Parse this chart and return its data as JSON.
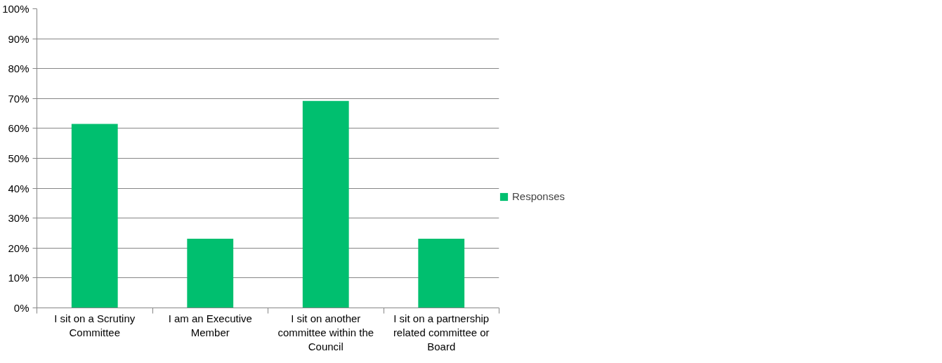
{
  "chart_data": {
    "type": "bar",
    "categories": [
      "I sit on a Scrutiny Committee",
      "I am an Executive Member",
      "I sit on another committee within the Council",
      "I sit on a partnership related committee or Board"
    ],
    "series": [
      {
        "name": "Responses",
        "color": "#00bf6f",
        "values": [
          61.5,
          23.1,
          69.2,
          23.1
        ]
      }
    ],
    "ylim": [
      0,
      100
    ],
    "yticks": [
      {
        "value": 0,
        "label": "0%"
      },
      {
        "value": 10,
        "label": "10%"
      },
      {
        "value": 20,
        "label": "20%"
      },
      {
        "value": 30,
        "label": "30%"
      },
      {
        "value": 40,
        "label": "40%"
      },
      {
        "value": 50,
        "label": "50%"
      },
      {
        "value": 60,
        "label": "60%"
      },
      {
        "value": 70,
        "label": "70%"
      },
      {
        "value": 80,
        "label": "80%"
      },
      {
        "value": 90,
        "label": "90%"
      },
      {
        "value": 100,
        "label": "100%"
      }
    ],
    "grid": "y",
    "legend": "right"
  }
}
